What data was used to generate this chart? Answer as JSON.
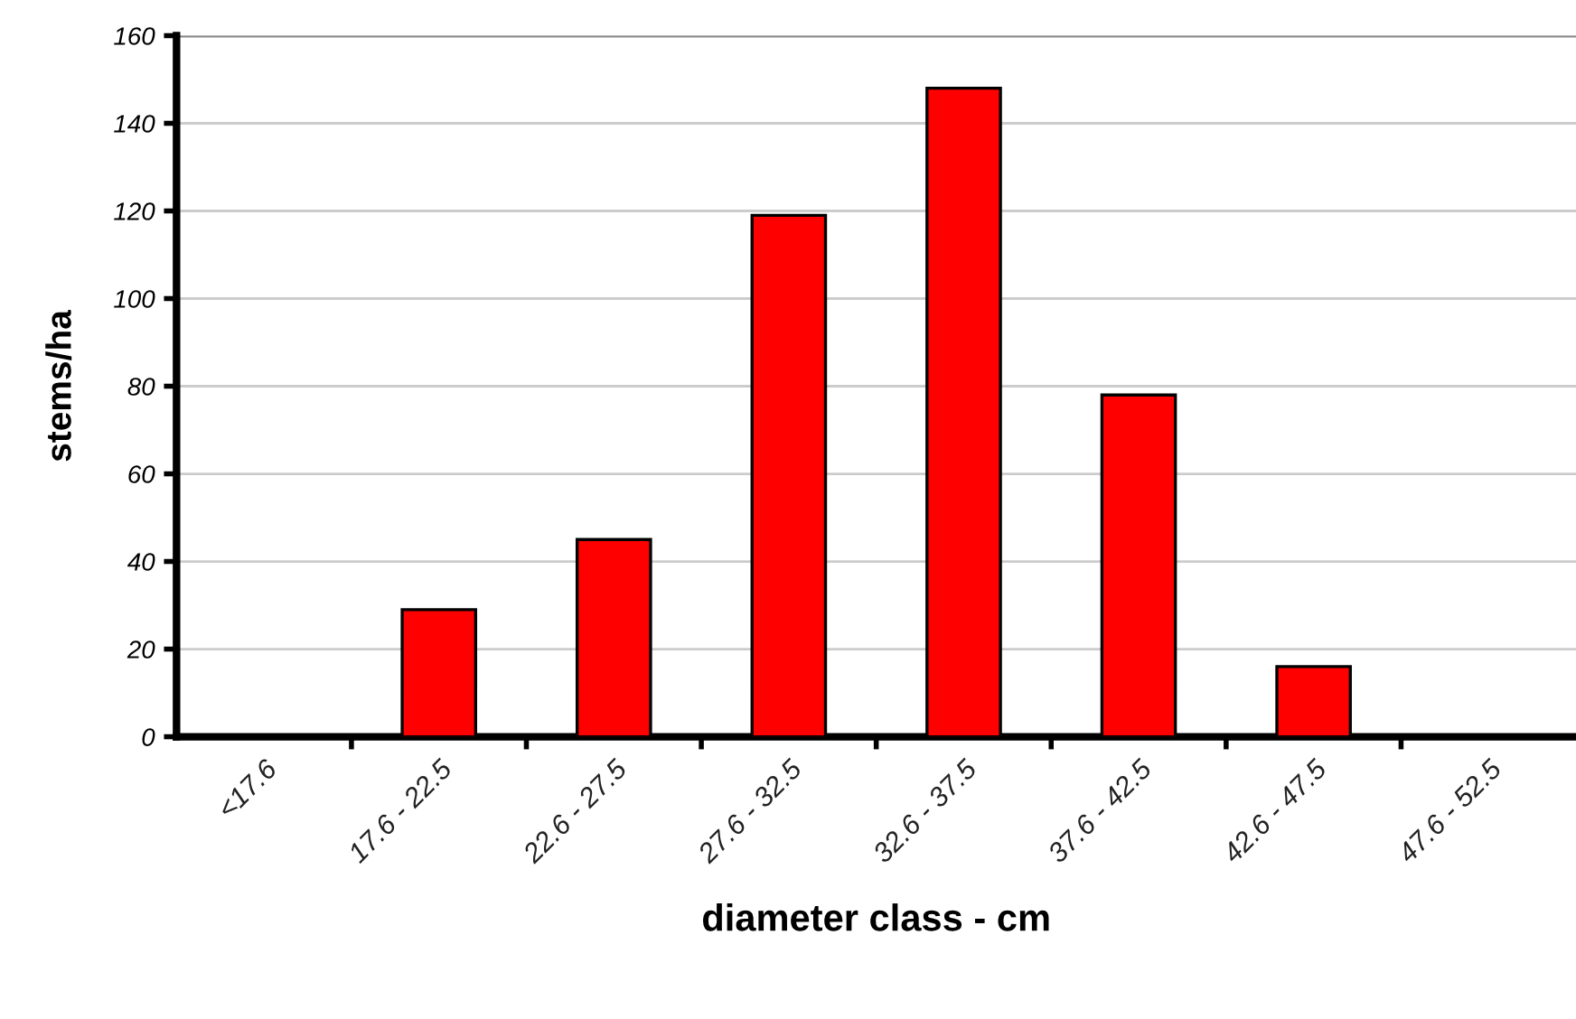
{
  "chart_data": {
    "type": "bar",
    "xlabel": "diameter class - cm",
    "ylabel": "stems/ha",
    "categories": [
      "<17.6",
      "17.6 - 22.5",
      "22.6 - 27.5",
      "27.6 - 32.5",
      "32.6 - 37.5",
      "37.6 - 42.5",
      "42.6 - 47.5",
      "47.6 - 52.5"
    ],
    "values": [
      0,
      29,
      45,
      119,
      148,
      78,
      16,
      0
    ],
    "color": "#ff0000",
    "ylim": [
      0,
      160
    ],
    "yticks": [
      0,
      20,
      40,
      60,
      80,
      100,
      120,
      140,
      160
    ],
    "grid": "y",
    "legend": false
  }
}
